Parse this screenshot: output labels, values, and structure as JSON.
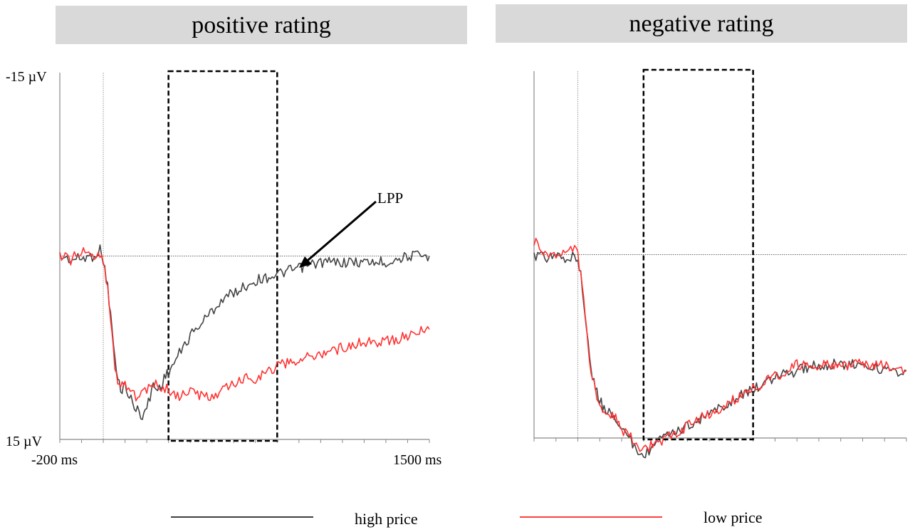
{
  "panels": [
    {
      "title": "positive rating"
    },
    {
      "title": "negative rating"
    }
  ],
  "axis": {
    "y_top_label": "-15 µV",
    "y_bottom_label": "15 µV",
    "x_start_label": "-200 ms",
    "x_end_label": "1500 ms"
  },
  "annotation": {
    "text": "LPP"
  },
  "legend": {
    "high_label": "high price",
    "low_label": "low price",
    "high_color": "#000000",
    "low_color": "#ff0000"
  },
  "chart_data": [
    {
      "type": "line",
      "title": "positive rating",
      "xlim": [
        -200,
        1500
      ],
      "ylim": [
        -15,
        15
      ],
      "y_axis_inverted": true,
      "x_unit": "ms",
      "y_unit": "µV",
      "time_window": [
        300,
        800
      ],
      "series": [
        {
          "name": "high price",
          "color": "#444444",
          "x": [
            -200,
            -150,
            -100,
            -50,
            -15,
            0,
            20,
            40,
            60,
            80,
            100,
            120,
            150,
            180,
            200,
            230,
            250,
            280,
            300,
            350,
            400,
            450,
            500,
            550,
            600,
            650,
            700,
            800,
            900,
            1000,
            1100,
            1200,
            1300,
            1400,
            1500
          ],
          "y": [
            0.0,
            0.3,
            0.2,
            0.0,
            -0.5,
            0.3,
            2.5,
            6.0,
            9.5,
            11.0,
            10.5,
            11.5,
            12.5,
            13.0,
            12.5,
            10.5,
            11.0,
            10.0,
            9.5,
            8.0,
            6.5,
            5.5,
            4.5,
            3.5,
            3.0,
            2.5,
            2.0,
            1.5,
            1.0,
            0.5,
            0.5,
            0.5,
            0.5,
            0.0,
            0.0
          ]
        },
        {
          "name": "low price",
          "color": "#ff3333",
          "x": [
            -200,
            -150,
            -100,
            -50,
            -15,
            0,
            20,
            40,
            60,
            80,
            100,
            150,
            200,
            250,
            300,
            350,
            400,
            450,
            500,
            550,
            600,
            650,
            700,
            800,
            900,
            1000,
            1100,
            1200,
            1300,
            1400,
            1500
          ],
          "y": [
            0.0,
            0.3,
            -0.3,
            0.0,
            -0.3,
            0.3,
            2.5,
            6.5,
            10.0,
            10.5,
            10.5,
            11.5,
            11.0,
            10.5,
            11.0,
            11.5,
            11.0,
            11.5,
            11.5,
            11.0,
            10.5,
            10.0,
            10.0,
            9.0,
            8.5,
            8.0,
            7.5,
            7.0,
            7.0,
            6.5,
            6.0
          ]
        }
      ]
    },
    {
      "type": "line",
      "title": "negative rating",
      "xlim": [
        -200,
        1500
      ],
      "ylim": [
        -15,
        15
      ],
      "y_axis_inverted": true,
      "x_unit": "ms",
      "y_unit": "µV",
      "time_window": [
        300,
        800
      ],
      "series": [
        {
          "name": "high price",
          "color": "#444444",
          "x": [
            -200,
            -150,
            -100,
            -50,
            -15,
            0,
            20,
            40,
            60,
            80,
            100,
            120,
            150,
            180,
            200,
            250,
            300,
            350,
            400,
            450,
            500,
            550,
            600,
            650,
            700,
            800,
            900,
            1000,
            1100,
            1200,
            1300,
            1400,
            1500
          ],
          "y": [
            0.0,
            0.3,
            0.2,
            0.2,
            0.0,
            0.3,
            2.5,
            6.0,
            9.5,
            11.0,
            12.0,
            12.5,
            13.0,
            13.5,
            14.0,
            15.5,
            16.5,
            15.5,
            15.0,
            14.5,
            14.0,
            13.5,
            13.0,
            12.5,
            12.0,
            11.0,
            10.0,
            9.5,
            9.0,
            9.0,
            9.0,
            9.5,
            9.5
          ]
        },
        {
          "name": "low price",
          "color": "#ff3333",
          "x": [
            -200,
            -150,
            -100,
            -50,
            -15,
            0,
            20,
            40,
            60,
            80,
            100,
            120,
            150,
            180,
            200,
            250,
            300,
            350,
            400,
            450,
            500,
            550,
            600,
            650,
            700,
            800,
            900,
            1000,
            1100,
            1200,
            1300,
            1400,
            1500
          ],
          "y": [
            -1.0,
            -0.3,
            0.0,
            -0.5,
            -0.3,
            0.0,
            2.5,
            6.0,
            9.5,
            11.0,
            12.5,
            12.5,
            13.0,
            13.5,
            14.5,
            15.0,
            16.0,
            15.5,
            15.0,
            14.5,
            14.0,
            13.5,
            13.0,
            12.5,
            12.0,
            11.0,
            10.0,
            9.0,
            9.0,
            9.0,
            9.0,
            9.0,
            9.5
          ]
        }
      ]
    }
  ]
}
